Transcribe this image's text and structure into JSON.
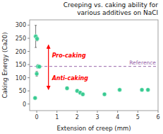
{
  "chart_data": {
    "type": "scatter",
    "title": "Creeping vs. caking ability for\nvarious additives on NaCl",
    "x_label": "Extension of creep (mm)",
    "y_label": "Caking Energy (Ca20)",
    "x": [
      -0.05,
      0.02,
      0.0,
      0.06,
      0.13,
      -0.08,
      1.5,
      2.0,
      2.15,
      2.28,
      3.35,
      4.1,
      5.2,
      5.5
    ],
    "values": [
      257,
      248,
      115,
      143,
      142,
      23,
      60,
      50,
      43,
      37,
      37,
      54,
      54,
      54
    ],
    "errors": [
      42,
      8,
      9,
      7,
      4,
      3,
      4,
      5,
      4,
      4,
      3,
      2,
      3,
      3
    ],
    "color": "#2ecc8e",
    "marker": "circle",
    "xlim": [
      -0.35,
      6.0
    ],
    "ylim": [
      -25,
      320
    ],
    "xticks": [
      0,
      1,
      2,
      3,
      4,
      5,
      6
    ],
    "yticks": [
      0,
      50,
      100,
      150,
      200,
      250,
      300
    ],
    "grid": false,
    "reference": {
      "value": 143,
      "label": "Reference",
      "color": "#9966aa"
    },
    "arrow": {
      "x": 0.58,
      "from": 55,
      "to": 225,
      "color": "red"
    },
    "annotations": [
      {
        "text": "Pro-caking",
        "color": "red"
      },
      {
        "text": "Anti-caking",
        "color": "red"
      }
    ]
  }
}
